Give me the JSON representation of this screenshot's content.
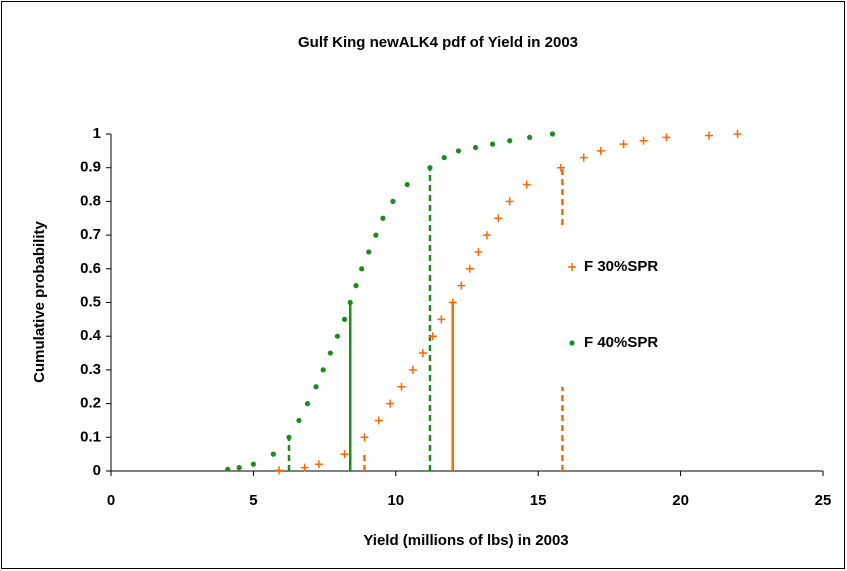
{
  "chart_data": {
    "type": "scatter",
    "title": "Gulf King newALK4 pdf of Yield in 2003",
    "x_label": "Yield (millions of lbs) in 2003",
    "y_label": "Cumulative probability",
    "xlim": [
      0,
      25
    ],
    "ylim": [
      0,
      1
    ],
    "xticks": [
      0,
      5,
      10,
      15,
      20,
      25
    ],
    "yticks": [
      0,
      0.1,
      0.2,
      0.3,
      0.4,
      0.5,
      0.6,
      0.7,
      0.8,
      0.9,
      1
    ],
    "grid": false,
    "legend": "inside-right",
    "series": [
      {
        "name": "F 30%SPR",
        "color": "#ff6600",
        "marker": "plus",
        "x": [
          5.9,
          6.8,
          7.3,
          8.2,
          8.9,
          9.4,
          9.8,
          10.2,
          10.6,
          10.95,
          11.3,
          11.6,
          12.0,
          12.3,
          12.6,
          12.9,
          13.2,
          13.6,
          14.0,
          14.6,
          15.8,
          16.6,
          17.2,
          18.0,
          18.7,
          19.5,
          21.0,
          22.0
        ],
        "values": [
          0.002,
          0.01,
          0.02,
          0.05,
          0.1,
          0.15,
          0.2,
          0.25,
          0.3,
          0.35,
          0.4,
          0.45,
          0.5,
          0.55,
          0.6,
          0.65,
          0.7,
          0.75,
          0.8,
          0.85,
          0.9,
          0.93,
          0.95,
          0.97,
          0.98,
          0.99,
          0.995,
          1.0
        ]
      },
      {
        "name": "F 40%SPR",
        "color": "#1a8c1a",
        "marker": "dot",
        "x": [
          4.1,
          4.5,
          5.0,
          5.7,
          6.25,
          6.6,
          6.9,
          7.2,
          7.45,
          7.7,
          7.95,
          8.2,
          8.4,
          8.6,
          8.8,
          9.05,
          9.3,
          9.55,
          9.9,
          10.4,
          11.2,
          11.7,
          12.2,
          12.8,
          13.4,
          14.0,
          14.7,
          15.5
        ],
        "values": [
          0.005,
          0.01,
          0.02,
          0.05,
          0.1,
          0.15,
          0.2,
          0.25,
          0.3,
          0.35,
          0.4,
          0.45,
          0.5,
          0.55,
          0.6,
          0.65,
          0.7,
          0.75,
          0.8,
          0.85,
          0.9,
          0.93,
          0.95,
          0.96,
          0.97,
          0.98,
          0.99,
          1.0
        ]
      }
    ],
    "reference_lines": [
      {
        "x": 8.4,
        "y": [
          0,
          0.5
        ],
        "color": "#1a8c1a",
        "dashed": false
      },
      {
        "x": 6.25,
        "y": [
          0,
          0.1
        ],
        "color": "#1a8c1a",
        "dashed": true
      },
      {
        "x": 11.2,
        "y": [
          0,
          0.9
        ],
        "color": "#1a8c1a",
        "dashed": true
      },
      {
        "x": 12.0,
        "y": [
          0,
          0.5
        ],
        "color": "#ff6600",
        "dashed": false
      },
      {
        "x": 8.9,
        "y": [
          0,
          0.06
        ],
        "color": "#ff6600",
        "dashed": true
      },
      {
        "x": 15.85,
        "y": [
          0,
          0.25
        ],
        "color": "#ff6600",
        "dashed": true
      },
      {
        "x": 15.85,
        "y": [
          0.73,
          0.9
        ],
        "color": "#ff6600",
        "dashed": true
      }
    ]
  }
}
